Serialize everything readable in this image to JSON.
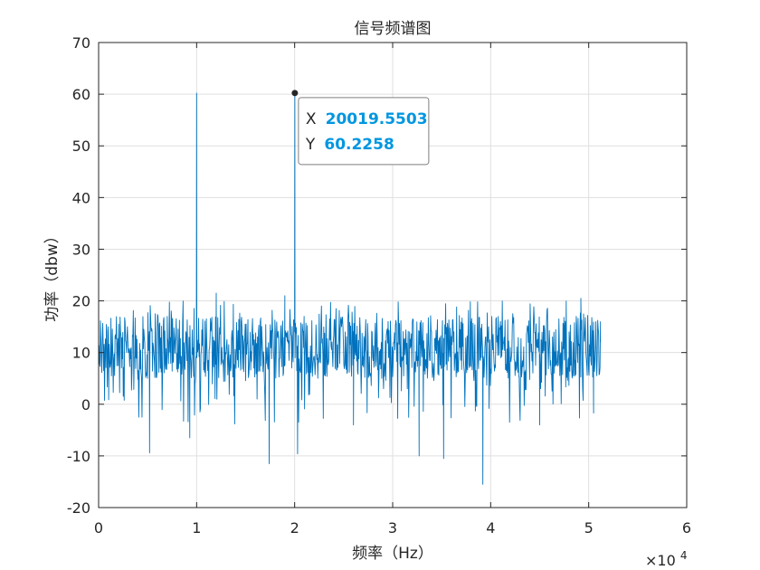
{
  "chart_data": {
    "type": "line",
    "title": "信号频谱图",
    "xlabel": "频率（Hz）",
    "ylabel": "功率（dbw）",
    "xlim": [
      0,
      60000
    ],
    "ylim": [
      -20,
      70
    ],
    "x_ticks": [
      0,
      10000,
      20000,
      30000,
      40000,
      50000,
      60000
    ],
    "x_tick_labels": [
      "0",
      "1",
      "2",
      "3",
      "4",
      "5",
      "6"
    ],
    "x_exponent_label": "×10",
    "x_exponent_power": "4",
    "y_ticks": [
      -20,
      -10,
      0,
      10,
      20,
      30,
      40,
      50,
      60,
      70
    ],
    "y_tick_labels": [
      "-20",
      "-10",
      "0",
      "10",
      "20",
      "30",
      "40",
      "50",
      "60",
      "70"
    ],
    "grid": true,
    "line_color": "#0072BD",
    "series": [
      {
        "noise_floor_mean": 11,
        "x_range": [
          0,
          51200
        ],
        "noise_min": -15.5,
        "noise_max": 21.5,
        "peaks": [
          {
            "x": 10000,
            "y": 60.2
          },
          {
            "x": 20019.5503,
            "y": 60.2258
          }
        ],
        "points": [
          [
            0,
            8
          ],
          [
            1000,
            15
          ],
          [
            2500,
            5
          ],
          [
            5200,
            -9.4
          ],
          [
            7000,
            17
          ],
          [
            9300,
            -6.5
          ],
          [
            10000,
            60.2
          ],
          [
            10500,
            11
          ],
          [
            12000,
            21.5
          ],
          [
            14000,
            9
          ],
          [
            17400,
            -11.5
          ],
          [
            19000,
            21
          ],
          [
            20019.5503,
            60.2258
          ],
          [
            20300,
            -9.6
          ],
          [
            23000,
            12
          ],
          [
            26000,
            -4
          ],
          [
            30000,
            10
          ],
          [
            32700,
            -10
          ],
          [
            35200,
            -10.5
          ],
          [
            38000,
            16
          ],
          [
            39200,
            -15.5
          ],
          [
            42000,
            11
          ],
          [
            45000,
            -4
          ],
          [
            48000,
            14
          ],
          [
            49200,
            20.5
          ],
          [
            50500,
            -1.7
          ],
          [
            51200,
            12
          ]
        ]
      }
    ],
    "datatip": {
      "x_label": "X",
      "x_value": "20019.5503",
      "y_label": "Y",
      "y_value": "60.2258",
      "x": 20019.5503,
      "y": 60.2258,
      "value_color": "#0096E0"
    }
  }
}
